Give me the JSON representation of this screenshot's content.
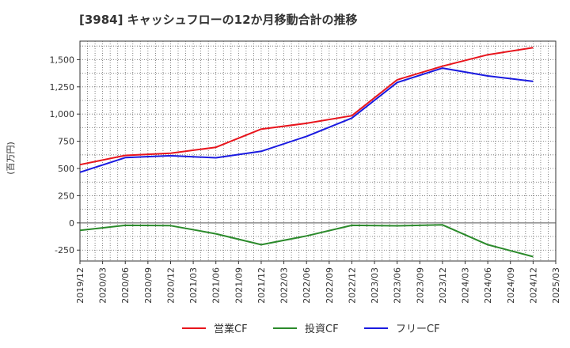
{
  "chart_data": {
    "type": "line",
    "title": "[3984]  キャッシュフローの12か月移動合計の推移",
    "ylabel": "(百万円)",
    "xlabel": "",
    "ylim": [
      -350,
      1670
    ],
    "yticks": [
      -250,
      0,
      250,
      500,
      750,
      1000,
      1250,
      1500
    ],
    "ytick_labels": [
      "-250",
      "0",
      "250",
      "500",
      "750",
      "1,000",
      "1,250",
      "1,500"
    ],
    "categories": [
      "2019/12",
      "2020/03",
      "2020/06",
      "2020/09",
      "2020/12",
      "2021/03",
      "2021/06",
      "2021/09",
      "2021/12",
      "2022/03",
      "2022/06",
      "2022/09",
      "2022/12",
      "2023/03",
      "2023/06",
      "2023/09",
      "2023/12",
      "2024/03",
      "2024/06",
      "2024/09",
      "2024/12",
      "2025/03"
    ],
    "grid": true,
    "legend_position": "bottom",
    "series": [
      {
        "name": "営業CF",
        "color": "#e8141c",
        "values": [
          535,
          null,
          620,
          null,
          640,
          null,
          695,
          null,
          862,
          null,
          915,
          null,
          985,
          null,
          1315,
          null,
          1440,
          null,
          1545,
          null,
          1610,
          null
        ]
      },
      {
        "name": "投資CF",
        "color": "#2b8a2b",
        "values": [
          -68,
          null,
          -22,
          null,
          -25,
          null,
          -100,
          null,
          -200,
          null,
          -120,
          null,
          -22,
          null,
          -27,
          null,
          -18,
          null,
          -200,
          null,
          -310,
          null
        ]
      },
      {
        "name": "フリーCF",
        "color": "#1a1ae0",
        "values": [
          465,
          null,
          600,
          null,
          617,
          null,
          598,
          null,
          658,
          null,
          795,
          null,
          963,
          null,
          1290,
          null,
          1422,
          null,
          1350,
          null,
          1300,
          null
        ]
      }
    ]
  }
}
